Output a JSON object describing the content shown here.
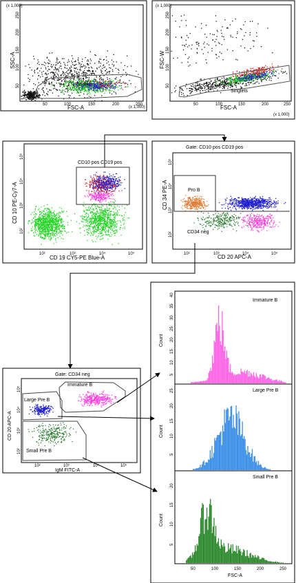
{
  "panels": {
    "p1": {
      "x_label": "FSC-A",
      "y_label": "SSC-A",
      "x_mult": "(x 1,000)",
      "y_mult": "(x 1,000)",
      "x_ticks": [
        "50",
        "100",
        "150",
        "200",
        "250"
      ],
      "y_ticks": [
        "50",
        "100",
        "150",
        "200",
        "250"
      ],
      "gate": "Viable"
    },
    "p2": {
      "x_label": "FSC-A",
      "y_label": "FSC-W",
      "x_mult": "(x 1,000)",
      "y_mult": "(x 1,000)",
      "x_ticks": [
        "50",
        "100",
        "150",
        "200",
        "250"
      ],
      "y_ticks": [
        "50",
        "100",
        "150",
        "200",
        "250"
      ],
      "gate": "Singlets"
    },
    "p3": {
      "x_label": "CD 19 CY5-PE Blue-A",
      "y_label": "CD 10 PE-Cy7-A",
      "gate": "CD10 pos CD19 pos"
    },
    "p4": {
      "title": "Gate: CD10 pos CD19 pos",
      "x_label": "CD 20 APC-A",
      "y_label": "CD 34 PE-A",
      "gate_top": "Pro B",
      "gate_bottom": "CD34 neg"
    },
    "p5": {
      "title": "Gate: CD34 neg",
      "x_label": "IgM FITC-A",
      "y_label": "CD 20 APC-A",
      "gate_a": "Immature B",
      "gate_b": "Large Pre B",
      "gate_c": "Small Pre B"
    },
    "h1": {
      "label": "Immature B",
      "y_label": "Count",
      "y_ticks": [
        "5",
        "10",
        "15",
        "20",
        "25",
        "30",
        "35",
        "40"
      ]
    },
    "h2": {
      "label": "Large Pre B",
      "y_label": "Count",
      "y_ticks": [
        "5",
        "10",
        "15",
        "20",
        "25"
      ]
    },
    "h3": {
      "label": "Small Pre B",
      "y_label": "Count",
      "y_ticks": [
        "5",
        "10",
        "15",
        "20"
      ],
      "x_label": "FSC-A",
      "x_ticks": [
        "50",
        "100",
        "150",
        "200",
        "250"
      ]
    }
  },
  "log_ticks": [
    "10²",
    "10³",
    "10⁴",
    "10⁵"
  ],
  "colors": {
    "green": "#22d422",
    "blue": "#2020d0",
    "red": "#e02020",
    "magenta": "#ff40e0",
    "orange": "#e07a30",
    "darkgreen": "#2e7d32",
    "hist_pink": "#ff66e6",
    "hist_blue": "#3d8fe8",
    "hist_green": "#2f8a2f"
  }
}
